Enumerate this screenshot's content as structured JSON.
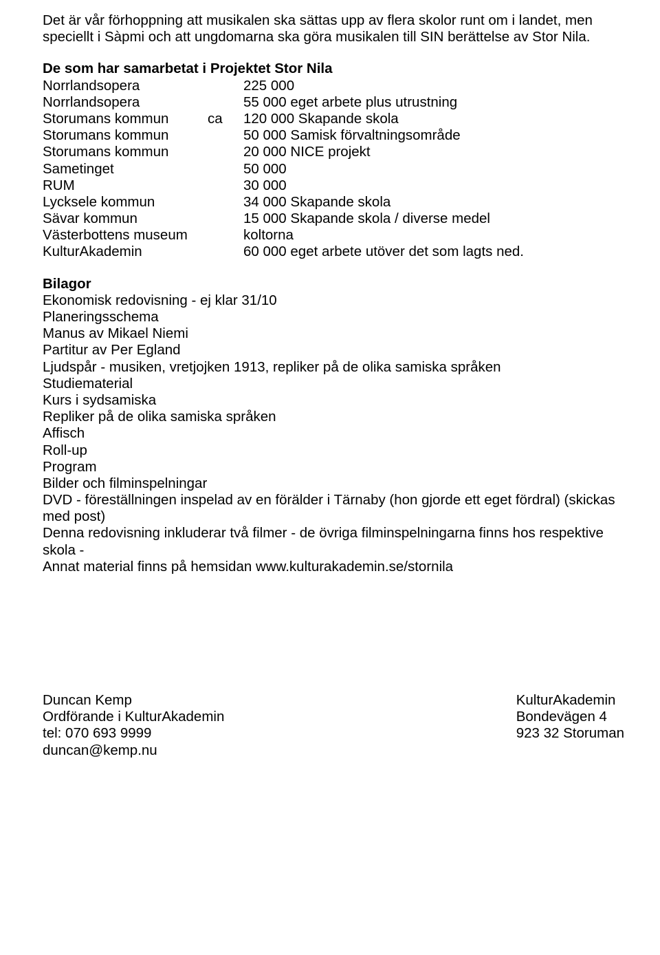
{
  "intro": "Det är vår förhoppning att musikalen ska sättas upp av flera skolor runt om i landet, men speciellt i Sàpmi och att ungdomarna ska göra musikalen till SIN berättelse av Stor Nila.",
  "funding_title": "De som har samarbetat i Projektet Stor Nila",
  "funding": [
    {
      "org": "Norrlandsopera",
      "mid": "",
      "val": "225 000"
    },
    {
      "org": "Norrlandsopera",
      "mid": "",
      "val": "55 000 eget arbete plus utrustning"
    },
    {
      "org": "Storumans kommun",
      "mid": "ca",
      "val": "120 000 Skapande skola"
    },
    {
      "org": "Storumans kommun",
      "mid": "",
      "val": "50 000 Samisk förvaltningsområde"
    },
    {
      "org": "Storumans kommun",
      "mid": "",
      "val": "20 000 NICE projekt"
    },
    {
      "org": "Sametinget",
      "mid": "",
      "val": "50 000"
    },
    {
      "org": "RUM",
      "mid": "",
      "val": "30 000"
    },
    {
      "org": "Lycksele kommun",
      "mid": "",
      "val": "34 000 Skapande skola"
    },
    {
      "org": "Sävar kommun",
      "mid": "",
      "val": "15 000 Skapande skola / diverse medel"
    },
    {
      "org": "Västerbottens museum",
      "mid": "",
      "val": "koltorna"
    },
    {
      "org": "KulturAkademin",
      "mid": "",
      "val": "60 000 eget arbete utöver det som lagts ned."
    }
  ],
  "bilagor_title": "Bilagor",
  "bilagor_lines": [
    "Ekonomisk redovisning - ej klar 31/10",
    "Planeringsschema",
    "Manus av Mikael Niemi",
    "Partitur av Per Egland",
    "Ljudspår - musiken, vretjojken 1913, repliker på de olika samiska språken",
    "Studiematerial",
    "Kurs i sydsamiska",
    "Repliker på de olika samiska språken",
    "Affisch",
    "Roll-up",
    "Program",
    "Bilder och filminspelningar",
    "DVD - föreställningen inspelad av en förälder i Tärnaby (hon gjorde ett eget fördral) (skickas med post)",
    "Denna redovisning inkluderar två filmer - de övriga filminspelningarna finns hos respektive skola -",
    "Annat material finns på hemsidan www.kulturakademin.se/stornila"
  ],
  "footer": {
    "left": {
      "name": "Duncan Kemp",
      "role": "Ordförande i KulturAkademin",
      "tel": "tel: 070 693 9999",
      "email": "duncan@kemp.nu"
    },
    "right": {
      "org": "KulturAkademin",
      "address": "Bondevägen 4",
      "postal": "923 32 Storuman"
    }
  }
}
